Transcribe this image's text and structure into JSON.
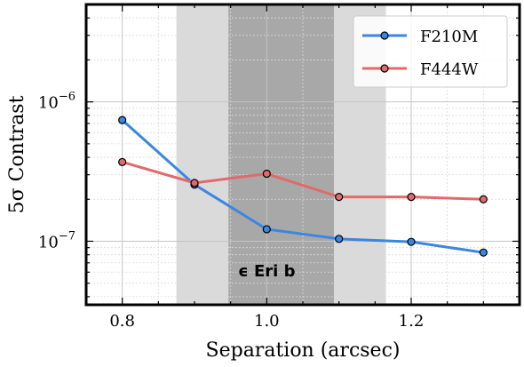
{
  "chart_data": {
    "type": "line",
    "xlabel": "Separation (arcsec)",
    "ylabel": "5σ Contrast",
    "xlim": [
      0.75,
      1.35
    ],
    "ylim": [
      3.5e-08,
      5e-06
    ],
    "yscale": "log",
    "grid": true,
    "legend_position": "top-right",
    "x": [
      0.8,
      0.9,
      1.0,
      1.1,
      1.2,
      1.3
    ],
    "series": [
      {
        "name": "F210M",
        "color": "#3b86e0",
        "values": [
          7.4e-07,
          2.55e-07,
          1.22e-07,
          1.04e-07,
          9.9e-08,
          8.3e-08
        ]
      },
      {
        "name": "F444W",
        "color": "#e06a6c",
        "values": [
          3.7e-07,
          2.62e-07,
          3.05e-07,
          2.08e-07,
          2.08e-07,
          2e-07
        ]
      }
    ],
    "shaded_regions": [
      {
        "x": [
          0.875,
          1.165
        ],
        "color": "#dadada"
      },
      {
        "x": [
          0.947,
          1.093
        ],
        "color": "#a8a8a8"
      }
    ],
    "annotation": {
      "text": "ϵ Eri b",
      "x": 1.0,
      "y": 5.6e-08
    },
    "x_ticks": [
      {
        "value": 0.8,
        "label": "0.8"
      },
      {
        "value": 1.0,
        "label": "1.0"
      },
      {
        "value": 1.2,
        "label": "1.2"
      }
    ],
    "y_ticks": [
      {
        "value": 1e-06,
        "label": "10",
        "exp": "−6"
      },
      {
        "value": 1e-07,
        "label": "10",
        "exp": "−7"
      }
    ]
  }
}
